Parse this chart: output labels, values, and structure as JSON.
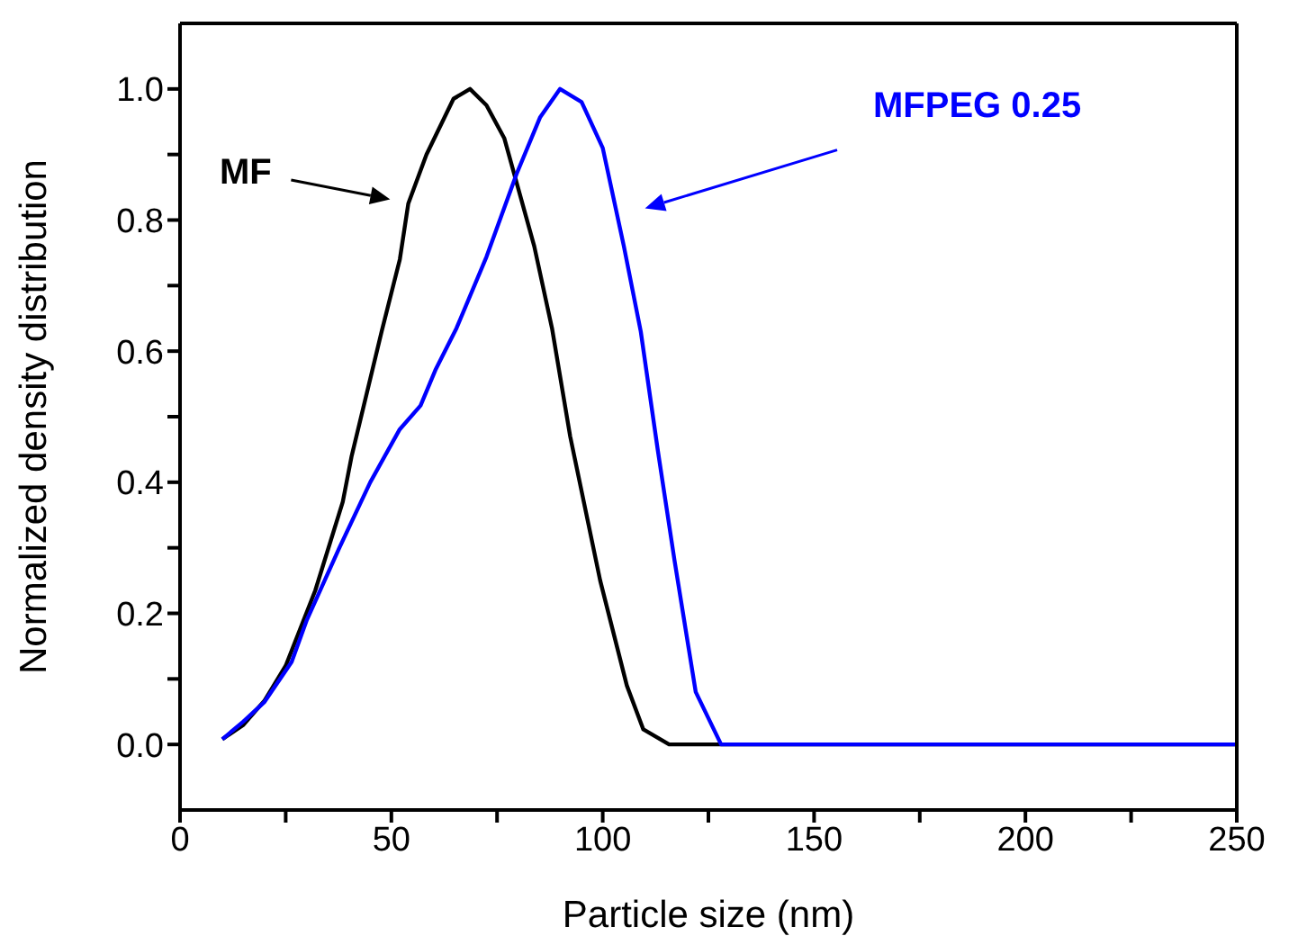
{
  "chart_data": {
    "type": "line",
    "xlabel": "Particle size (nm)",
    "ylabel": "Normalized density distribution",
    "series": [
      {
        "color": "#000000",
        "x": [
          10,
          15,
          20,
          25,
          32,
          38.5,
          40.6,
          47.7,
          52,
          54,
          58.3,
          64.7,
          68.6,
          72.5,
          76.7,
          83.8,
          88,
          92.3,
          99.4,
          105.7,
          109.6,
          115.7,
          250
        ],
        "values": [
          0.008,
          0.03,
          0.067,
          0.12,
          0.235,
          0.37,
          0.44,
          0.63,
          0.74,
          0.825,
          0.9,
          0.985,
          1.0,
          0.975,
          0.925,
          0.76,
          0.635,
          0.47,
          0.25,
          0.09,
          0.023,
          0,
          0
        ]
      },
      {
        "color": "#0000ff",
        "x": [
          10,
          15,
          20,
          26.4,
          30,
          37.7,
          45,
          51.9,
          56.9,
          60.4,
          65.4,
          72.5,
          79.6,
          85.2,
          89.9,
          95,
          100,
          105,
          109,
          113,
          117,
          122,
          128,
          250
        ],
        "values": [
          0.008,
          0.035,
          0.065,
          0.126,
          0.19,
          0.3,
          0.4,
          0.48,
          0.517,
          0.571,
          0.635,
          0.744,
          0.87,
          0.957,
          1.0,
          0.98,
          0.91,
          0.76,
          0.63,
          0.45,
          0.28,
          0.08,
          0,
          0
        ]
      }
    ],
    "annotations": [
      "MF",
      "MFPEG 0.25"
    ],
    "xlim": [
      0,
      250
    ],
    "xticks": [
      0,
      {
        "value": 25,
        "label": null
      },
      50,
      {
        "value": 75,
        "label": null
      },
      100,
      {
        "value": 125,
        "label": null
      },
      150,
      {
        "value": 175,
        "label": null
      },
      200,
      {
        "value": 225,
        "label": null
      },
      250
    ],
    "ylim": [
      -0.1,
      1.1
    ],
    "yticks": [
      {
        "value": 0,
        "label": "0.0"
      },
      {
        "value": 0.1,
        "label": null
      },
      {
        "value": 0.2,
        "label": "0.2"
      },
      {
        "value": 0.3,
        "label": null
      },
      {
        "value": 0.4,
        "label": "0.4"
      },
      {
        "value": 0.5,
        "label": null
      },
      {
        "value": 0.6,
        "label": "0.6"
      },
      {
        "value": 0.7,
        "label": null
      },
      {
        "value": 0.8,
        "label": "0.8"
      },
      {
        "value": 0.9,
        "label": null
      },
      {
        "value": 1.0,
        "label": "1.0"
      }
    ],
    "grid": false,
    "legend": false
  }
}
